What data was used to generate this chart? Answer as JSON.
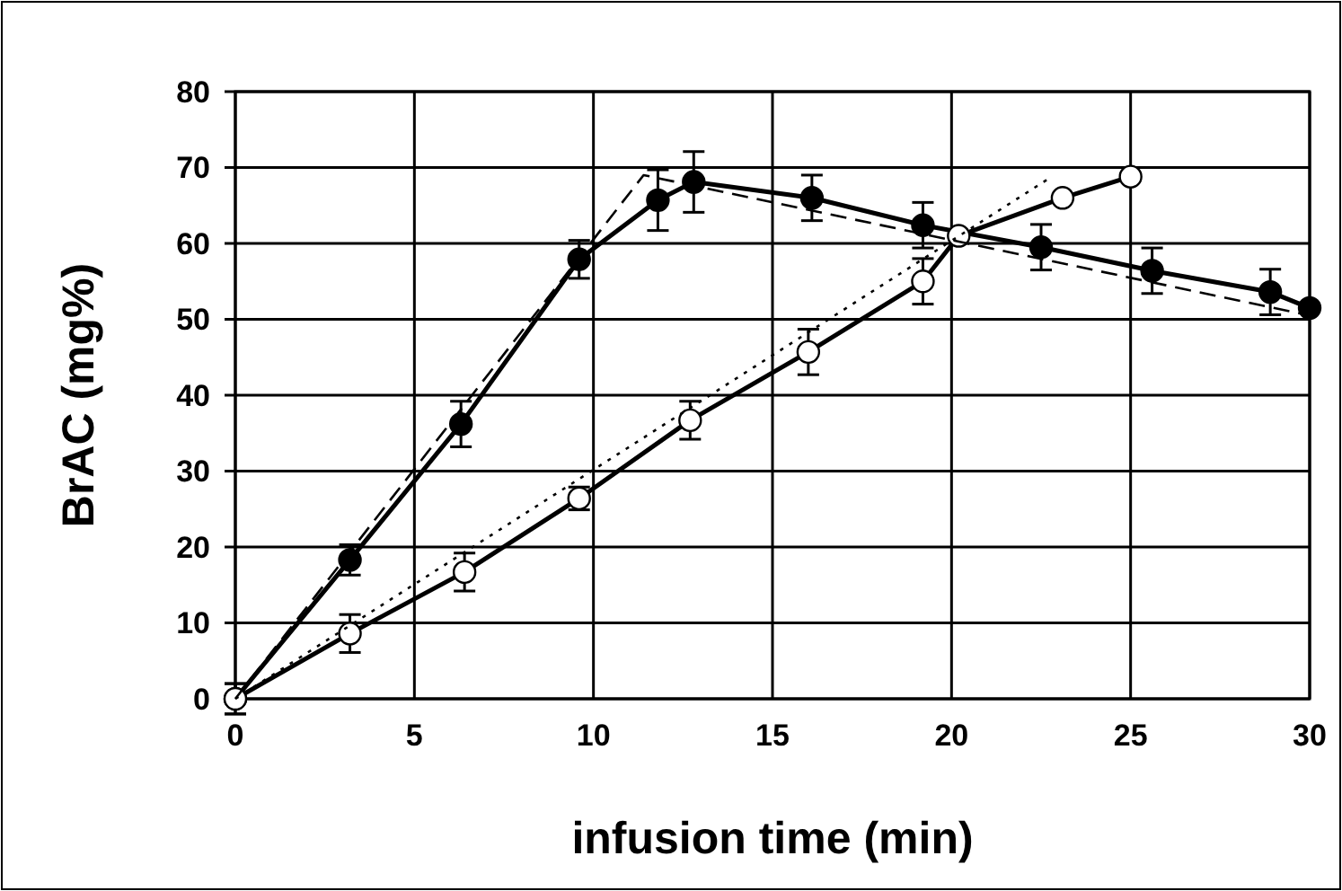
{
  "chart_data": {
    "type": "line",
    "xlabel": "infusion time (min)",
    "ylabel": "BrAC (mg%)",
    "xlim": [
      0,
      30
    ],
    "ylim": [
      0,
      80
    ],
    "xticks": [
      0,
      5,
      10,
      15,
      20,
      25,
      30
    ],
    "yticks": [
      0,
      10,
      20,
      30,
      40,
      50,
      60,
      70,
      80
    ],
    "grid": true,
    "marker": "circle",
    "line_style": "solid",
    "series": [
      {
        "color": "#000000",
        "x": [
          0,
          3.2,
          6.3,
          9.6,
          11.8,
          12.8,
          16.1,
          19.2,
          22.5,
          25.6,
          28.9,
          30
        ],
        "values": [
          0,
          18.3,
          36.2,
          57.9,
          65.7,
          68.1,
          66,
          62.4,
          59.5,
          56.4,
          53.6,
          51.5
        ],
        "errors": [
          2,
          2,
          3,
          2.5,
          4,
          4,
          3,
          3,
          3,
          3,
          3,
          null
        ]
      },
      {
        "color": "#ffffff",
        "x": [
          0,
          3.2,
          6.4,
          9.6,
          12.7,
          16,
          19.2,
          20.2,
          23.1,
          25
        ],
        "values": [
          0,
          8.6,
          16.7,
          26.4,
          36.7,
          45.7,
          55,
          61,
          66,
          68.8
        ],
        "errors": [
          2,
          2.5,
          2.5,
          1.5,
          2.5,
          3,
          3,
          null,
          null,
          null
        ]
      },
      {
        "color": "#000000",
        "marker": "none",
        "line_style": "dashed",
        "x": [
          0,
          11.4,
          30
        ],
        "values": [
          0,
          69,
          50.5
        ]
      },
      {
        "color": "#000000",
        "marker": "none",
        "line_style": "dotted",
        "x": [
          0,
          22.8
        ],
        "values": [
          0,
          68.8
        ]
      }
    ]
  }
}
